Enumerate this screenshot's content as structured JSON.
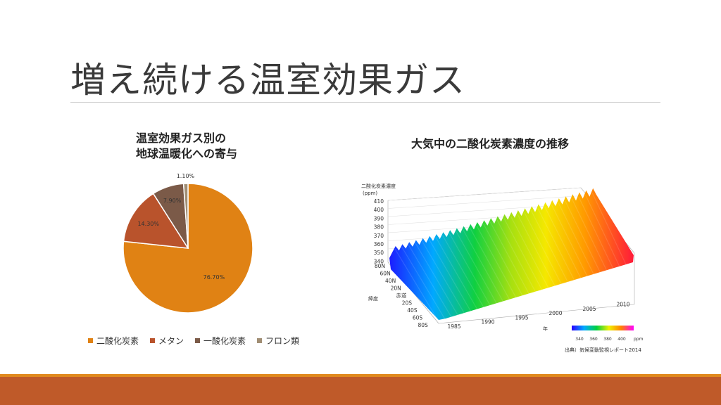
{
  "slide": {
    "title": "増え続ける温室効果ガス"
  },
  "pie_section": {
    "title_line1": "温室効果ガス別の",
    "title_line2": "地球温暖化への寄与"
  },
  "surface_section": {
    "title": "大気中の二酸化炭素濃度の推移",
    "z_axis_label_line1": "二酸化炭素濃度",
    "z_axis_label_line2": "(ppm)",
    "z_ticks": [
      "410",
      "400",
      "390",
      "380",
      "370",
      "360",
      "350",
      "340"
    ],
    "lat_ticks": [
      "80N",
      "60N",
      "40N",
      "20N",
      "赤道",
      "20S",
      "40S",
      "60S",
      "80S"
    ],
    "lat_axis_label": "緯度",
    "year_ticks": [
      "1985",
      "1990",
      "1995",
      "2000",
      "2005",
      "2010"
    ],
    "year_axis_label": "年",
    "colorbar_ticks": [
      "340",
      "360",
      "380",
      "400"
    ],
    "colorbar_unit": "ppm",
    "source": "出典）気候変動監視レポート2014"
  },
  "chart_data": {
    "type": "pie",
    "title": "温室効果ガス別の地球温暖化への寄与",
    "categories": [
      "二酸化炭素",
      "メタン",
      "一酸化炭素",
      "フロン類"
    ],
    "values": [
      76.7,
      14.3,
      7.9,
      1.1
    ],
    "labels": [
      "76.70%",
      "14.30%",
      "7.90%",
      "1.10%"
    ],
    "colors": [
      "#e08214",
      "#b9532c",
      "#7b5a48",
      "#a18e74"
    ],
    "legend_position": "bottom"
  },
  "colors": {
    "footer": "#bf5a29",
    "footer_accent": "#e08a1e"
  }
}
